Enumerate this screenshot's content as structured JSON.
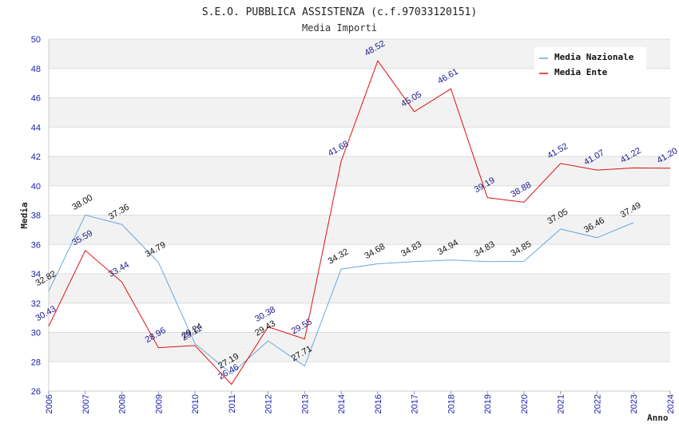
{
  "chart_data": {
    "type": "line",
    "title": "S.E.O. PUBBLICA ASSISTENZA (c.f.97033120151)",
    "subtitle": "Media Importi",
    "xlabel": "Anno",
    "ylabel": "Media",
    "ylim": [
      26,
      50
    ],
    "yticks": [
      "26",
      "28",
      "30",
      "32",
      "34",
      "36",
      "38",
      "40",
      "42",
      "44",
      "46",
      "48",
      "50"
    ],
    "x": [
      "2006",
      "2007",
      "2008",
      "2009",
      "2010",
      "2011",
      "2012",
      "2013",
      "2014",
      "2016",
      "2017",
      "2018",
      "2019",
      "2020",
      "2021",
      "2022",
      "2023",
      "2024"
    ],
    "grid": true,
    "legend_position": "top-right",
    "series": [
      {
        "name": "Media Nazionale",
        "color": "#6aa8e0",
        "label_color": "#111111",
        "values": [
          32.82,
          38.0,
          37.36,
          34.79,
          29.24,
          27.19,
          29.43,
          27.71,
          34.32,
          34.68,
          34.83,
          34.94,
          34.83,
          34.85,
          37.05,
          36.46,
          37.49,
          null
        ],
        "labels": [
          "32.82",
          "38.00",
          "37.36",
          "34.79",
          "29.24",
          "27.19",
          "29.43",
          "27.71",
          "34.32",
          "34.68",
          "34.83",
          "34.94",
          "34.83",
          "34.85",
          "37.05",
          "36.46",
          "37.49",
          ""
        ]
      },
      {
        "name": "Media Ente",
        "color": "#e01010",
        "label_color": "#1a1a8a",
        "values": [
          30.43,
          35.59,
          33.44,
          28.96,
          29.11,
          26.46,
          30.38,
          29.55,
          41.68,
          48.52,
          45.05,
          46.61,
          39.19,
          38.88,
          41.52,
          41.07,
          41.22,
          41.2
        ],
        "labels": [
          "30.43",
          "35.59",
          "33.44",
          "28.96",
          "29.11",
          "26.46",
          "30.38",
          "29.55",
          "41.68",
          "48.52",
          "45.05",
          "46.61",
          "39.19",
          "38.88",
          "41.52",
          "41.07",
          "41.22",
          "41.20"
        ]
      }
    ]
  }
}
